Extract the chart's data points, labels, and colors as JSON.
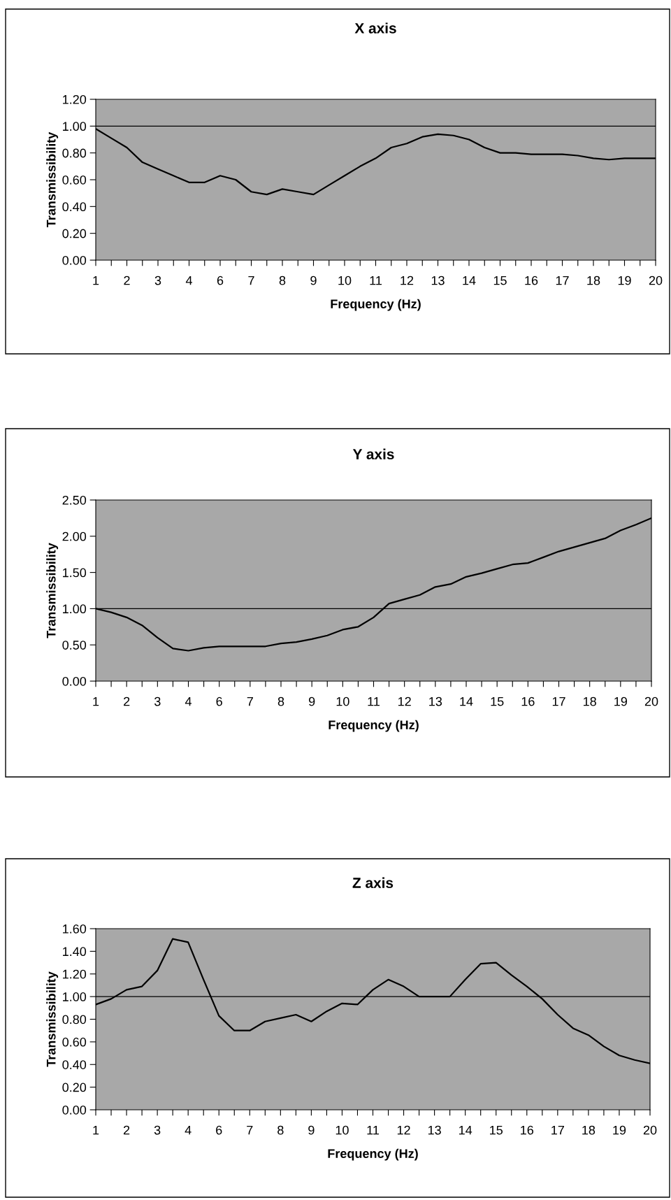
{
  "chart_data": [
    {
      "type": "line",
      "title": "X axis",
      "xlabel": "Frequency (Hz)",
      "ylabel": "Transmissibility",
      "categories": [
        "1",
        null,
        "2",
        null,
        "3",
        null,
        "4",
        null,
        "6",
        null,
        "7",
        null,
        "8",
        null,
        "9",
        null,
        "10",
        null,
        "11",
        null,
        "12",
        null,
        "13",
        null,
        "14",
        null,
        "15",
        null,
        "16",
        null,
        "17",
        null,
        "18",
        null,
        "19",
        null,
        "20"
      ],
      "series": [
        {
          "color": "#000000",
          "values": [
            0.98,
            0.91,
            0.84,
            0.73,
            0.68,
            0.63,
            0.58,
            0.58,
            0.63,
            0.6,
            0.51,
            0.49,
            0.53,
            0.51,
            0.49,
            0.56,
            0.63,
            0.7,
            0.76,
            0.84,
            0.87,
            0.92,
            0.94,
            0.93,
            0.9,
            0.84,
            0.8,
            0.8,
            0.79,
            0.79,
            0.79,
            0.78,
            0.76,
            0.75,
            0.76,
            0.76,
            0.76
          ]
        }
      ],
      "ylim": [
        0,
        1.2
      ],
      "yticks": [
        {
          "value": 0,
          "label": "0.00"
        },
        {
          "value": 0.2,
          "label": "0.20"
        },
        {
          "value": 0.4,
          "label": "0.40"
        },
        {
          "value": 0.6,
          "label": "0.60"
        },
        {
          "value": 0.8,
          "label": "0.80"
        },
        {
          "value": 1.0,
          "label": "1.00"
        },
        {
          "value": 1.2,
          "label": "1.20"
        }
      ],
      "ref_lines": [
        {
          "axis": "y",
          "value": 1.0,
          "color": "#000000"
        }
      ]
    },
    {
      "type": "line",
      "title": "Y axis",
      "xlabel": "Frequency (Hz)",
      "ylabel": "Transmissibility",
      "categories": [
        "1",
        null,
        "2",
        null,
        "3",
        null,
        "4",
        null,
        "6",
        null,
        "7",
        null,
        "8",
        null,
        "9",
        null,
        "10",
        null,
        "11",
        null,
        "12",
        null,
        "13",
        null,
        "14",
        null,
        "15",
        null,
        "16",
        null,
        "17",
        null,
        "18",
        null,
        "19",
        null,
        "20"
      ],
      "series": [
        {
          "color": "#000000",
          "values": [
            1.0,
            0.95,
            0.88,
            0.77,
            0.6,
            0.45,
            0.42,
            0.46,
            0.48,
            0.48,
            0.48,
            0.48,
            0.52,
            0.54,
            0.58,
            0.63,
            0.71,
            0.75,
            0.88,
            1.07,
            1.13,
            1.19,
            1.3,
            1.34,
            1.44,
            1.49,
            1.55,
            1.61,
            1.63,
            1.71,
            1.79,
            1.85,
            1.91,
            1.97,
            2.08,
            2.16,
            2.25
          ]
        }
      ],
      "ylim": [
        0,
        2.5
      ],
      "yticks": [
        {
          "value": 0,
          "label": "0.00"
        },
        {
          "value": 0.5,
          "label": "0.50"
        },
        {
          "value": 1.0,
          "label": "1.00"
        },
        {
          "value": 1.5,
          "label": "1.50"
        },
        {
          "value": 2.0,
          "label": "2.00"
        },
        {
          "value": 2.5,
          "label": "2.50"
        }
      ],
      "ref_lines": [
        {
          "axis": "y",
          "value": 1.0,
          "color": "#000000"
        }
      ]
    },
    {
      "type": "line",
      "title": "Z axis",
      "xlabel": "Frequency (Hz)",
      "ylabel": "Transmissibility",
      "categories": [
        "1",
        null,
        "2",
        null,
        "3",
        null,
        "4",
        null,
        "6",
        null,
        "7",
        null,
        "8",
        null,
        "9",
        null,
        "10",
        null,
        "11",
        null,
        "12",
        null,
        "13",
        null,
        "14",
        null,
        "15",
        null,
        "16",
        null,
        "17",
        null,
        "18",
        null,
        "19",
        null,
        "20"
      ],
      "series": [
        {
          "color": "#000000",
          "values": [
            0.93,
            0.98,
            1.06,
            1.09,
            1.23,
            1.51,
            1.48,
            1.15,
            0.83,
            0.7,
            0.7,
            0.78,
            0.81,
            0.84,
            0.78,
            0.87,
            0.94,
            0.93,
            1.06,
            1.15,
            1.09,
            1.0,
            1.0,
            1.0,
            1.15,
            1.29,
            1.3,
            1.19,
            1.09,
            0.98,
            0.84,
            0.72,
            0.66,
            0.56,
            0.48,
            0.44,
            0.41
          ]
        }
      ],
      "ylim": [
        0,
        1.6
      ],
      "yticks": [
        {
          "value": 0,
          "label": "0.00"
        },
        {
          "value": 0.2,
          "label": "0.20"
        },
        {
          "value": 0.4,
          "label": "0.40"
        },
        {
          "value": 0.6,
          "label": "0.60"
        },
        {
          "value": 0.8,
          "label": "0.80"
        },
        {
          "value": 1.0,
          "label": "1.00"
        },
        {
          "value": 1.2,
          "label": "1.20"
        },
        {
          "value": 1.4,
          "label": "1.40"
        },
        {
          "value": 1.6,
          "label": "1.60"
        }
      ],
      "ref_lines": [
        {
          "axis": "y",
          "value": 1.0,
          "color": "#000000"
        }
      ]
    }
  ]
}
